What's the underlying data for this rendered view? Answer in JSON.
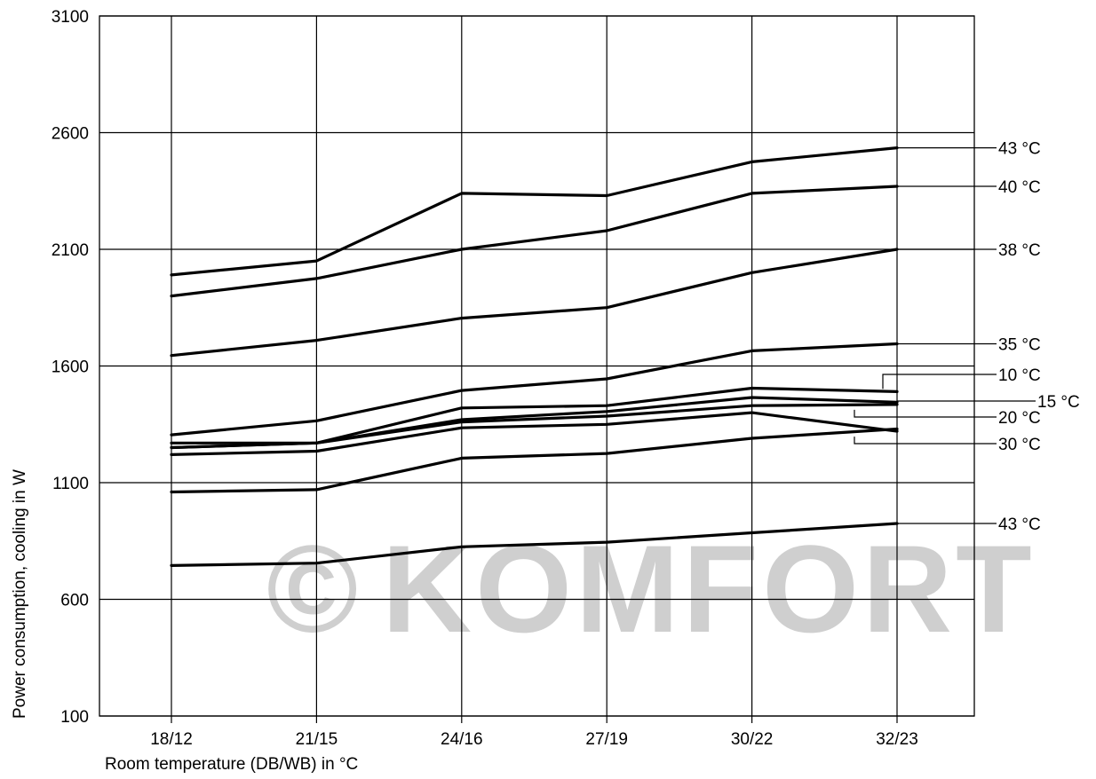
{
  "chart_data": {
    "type": "line",
    "title": "",
    "xlabel": "Room temperature (DB/WB) in °C",
    "ylabel": "Power consumption, cooling in W",
    "categories": [
      "18/12",
      "21/15",
      "24/16",
      "27/19",
      "30/22",
      "32/23"
    ],
    "ylim": [
      100,
      3100
    ],
    "yticks": [
      100,
      600,
      1100,
      1600,
      2100,
      2600,
      3100
    ],
    "grid": true,
    "legend": "right, leader lines",
    "series": [
      {
        "name": "43 °C",
        "values": [
          1990,
          2050,
          2340,
          2330,
          2475,
          2535
        ]
      },
      {
        "name": "40 °C",
        "values": [
          1900,
          1975,
          2100,
          2180,
          2340,
          2370
        ]
      },
      {
        "name": "38 °C",
        "values": [
          1645,
          1710,
          1805,
          1850,
          2000,
          2100
        ]
      },
      {
        "name": "35 °C",
        "values": [
          1305,
          1365,
          1495,
          1545,
          1665,
          1695
        ]
      },
      {
        "name": "10 °C",
        "values": [
          1270,
          1270,
          1420,
          1430,
          1505,
          1490
        ]
      },
      {
        "name": "15 °C",
        "values": [
          1250,
          1270,
          1370,
          1405,
          1465,
          1445
        ]
      },
      {
        "name": "20 °C",
        "values": [
          1250,
          1270,
          1360,
          1385,
          1430,
          1435
        ]
      },
      {
        "name": "30 °C",
        "values": [
          1220,
          1235,
          1335,
          1350,
          1400,
          1320
        ]
      },
      {
        "name": "",
        "values": [
          1060,
          1070,
          1205,
          1225,
          1290,
          1330
        ]
      },
      {
        "name": "43 °C",
        "values": [
          745,
          755,
          825,
          845,
          885,
          925
        ]
      }
    ]
  },
  "watermark": {
    "symbol": "©",
    "text": "KOMFORT"
  }
}
